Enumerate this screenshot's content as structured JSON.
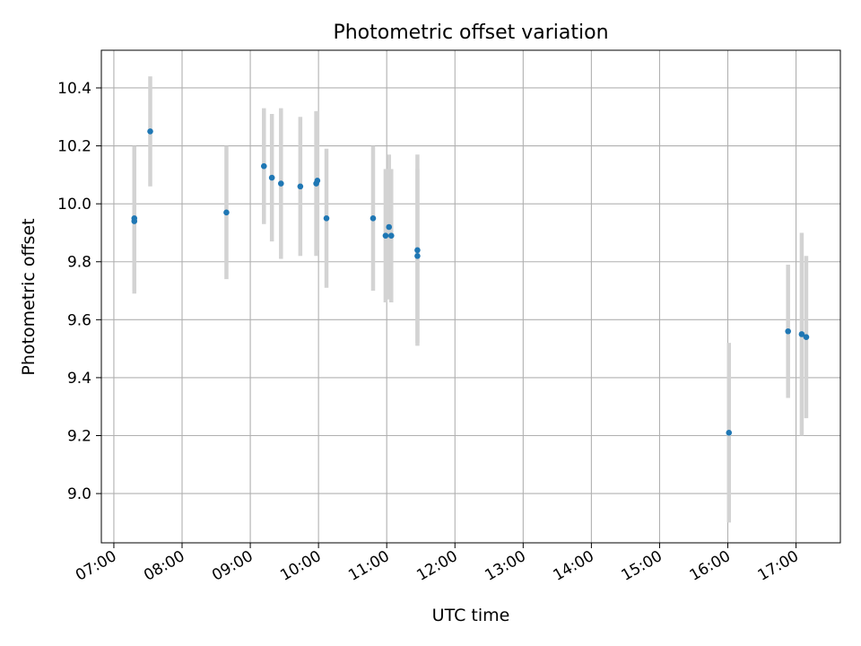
{
  "chart_data": {
    "type": "scatter",
    "title": "Photometric offset variation",
    "xlabel": "UTC time",
    "ylabel": "Photometric offset",
    "x_unit": "UTC time (HH:MM)",
    "xlim": [
      "06:49",
      "17:39"
    ],
    "ylim": [
      8.83,
      10.53
    ],
    "x_ticks": [
      "07:00",
      "08:00",
      "09:00",
      "10:00",
      "11:00",
      "12:00",
      "13:00",
      "14:00",
      "15:00",
      "16:00",
      "17:00"
    ],
    "y_ticks": [
      9.0,
      9.2,
      9.4,
      9.6,
      9.8,
      10.0,
      10.2,
      10.4
    ],
    "y_tick_labels": [
      "9.0",
      "9.2",
      "9.4",
      "9.6",
      "9.8",
      "10.0",
      "10.2",
      "10.4"
    ],
    "grid": true,
    "point_color": "#1f77b4",
    "errorbar_color": "#d3d3d3",
    "points": [
      {
        "x": "07:18",
        "y": 9.95,
        "err": 0.25
      },
      {
        "x": "07:18",
        "y": 9.94,
        "err": 0.25
      },
      {
        "x": "07:32",
        "y": 10.25,
        "err": 0.19
      },
      {
        "x": "08:39",
        "y": 9.97,
        "err": 0.23
      },
      {
        "x": "09:12",
        "y": 10.13,
        "err": 0.2
      },
      {
        "x": "09:19",
        "y": 10.09,
        "err": 0.22
      },
      {
        "x": "09:27",
        "y": 10.07,
        "err": 0.26
      },
      {
        "x": "09:44",
        "y": 10.06,
        "err": 0.24
      },
      {
        "x": "09:58",
        "y": 10.07,
        "err": 0.25
      },
      {
        "x": "09:59",
        "y": 10.08,
        "err": 0.24
      },
      {
        "x": "10:07",
        "y": 9.95,
        "err": 0.24
      },
      {
        "x": "10:48",
        "y": 9.95,
        "err": 0.25
      },
      {
        "x": "10:59",
        "y": 9.89,
        "err": 0.23
      },
      {
        "x": "11:02",
        "y": 9.92,
        "err": 0.25
      },
      {
        "x": "11:04",
        "y": 9.89,
        "err": 0.23
      },
      {
        "x": "11:27",
        "y": 9.84,
        "err": 0.33
      },
      {
        "x": "11:27",
        "y": 9.82,
        "err": 0.3
      },
      {
        "x": "16:01",
        "y": 9.21,
        "err": 0.31
      },
      {
        "x": "16:53",
        "y": 9.56,
        "err": 0.23
      },
      {
        "x": "17:05",
        "y": 9.55,
        "err": 0.35
      },
      {
        "x": "17:09",
        "y": 9.54,
        "err": 0.28
      }
    ]
  }
}
